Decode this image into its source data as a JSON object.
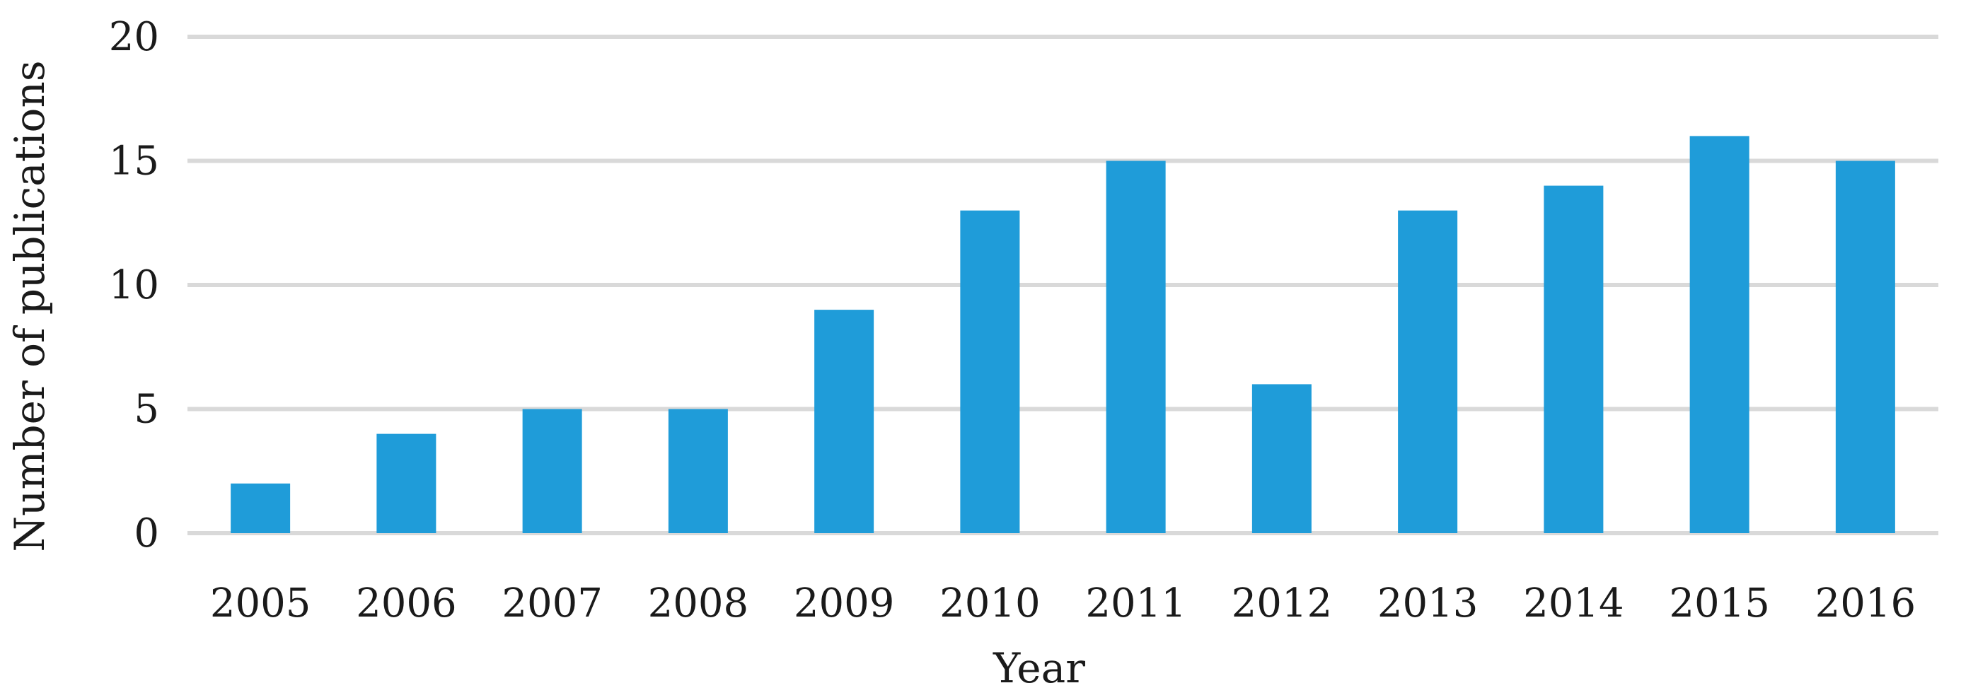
{
  "chart_data": {
    "type": "bar",
    "title": "",
    "xlabel": "Year",
    "ylabel": "Number of publications",
    "categories": [
      "2005",
      "2006",
      "2007",
      "2008",
      "2009",
      "2010",
      "2011",
      "2012",
      "2013",
      "2014",
      "2015",
      "2016"
    ],
    "values": [
      2,
      4,
      5,
      5,
      9,
      13,
      15,
      6,
      13,
      14,
      16,
      15
    ],
    "ylim": [
      0,
      20
    ],
    "yticks": [
      0,
      5,
      10,
      15,
      20
    ],
    "grid": true,
    "legend": "none",
    "colors": {
      "bar": "#1f9cd9",
      "grid": "#d9d9d9"
    }
  }
}
